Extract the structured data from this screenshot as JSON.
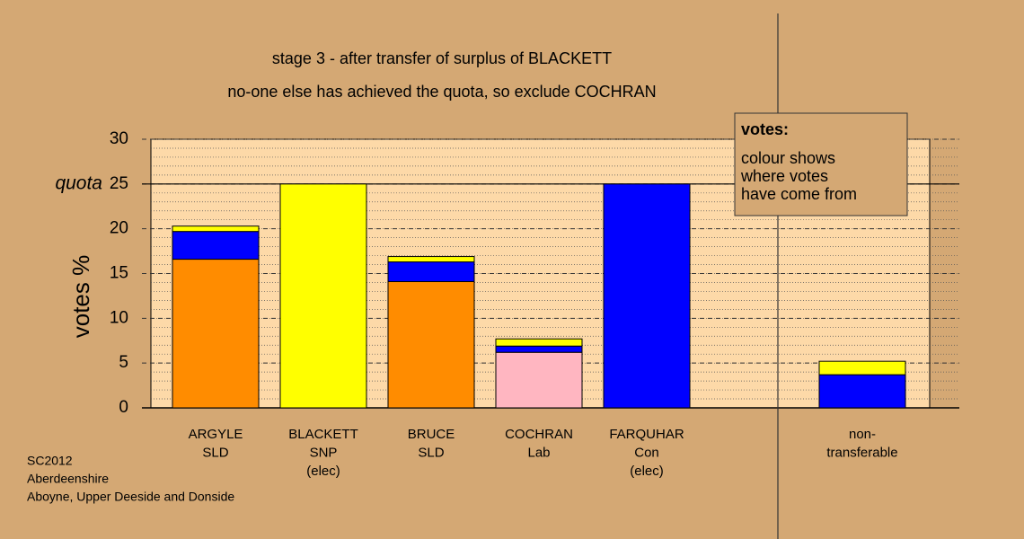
{
  "chart_data": {
    "type": "stacked_bar",
    "title": "stage 3 - after transfer of surplus of BLACKETT",
    "subtitle": "no-one else has achieved the quota, so exclude COCHRAN",
    "y_label": "votes %",
    "categories": [
      [
        "ARGYLE",
        "SLD"
      ],
      [
        "BLACKETT",
        "SNP",
        "(elec)"
      ],
      [
        "BRUCE",
        "SLD"
      ],
      [
        "COCHRAN",
        "Lab"
      ],
      [
        "FARQUHAR",
        "Con",
        "(elec)"
      ],
      null,
      [
        "non-",
        "transferable"
      ]
    ],
    "series": [
      {
        "color": "#ff8c00",
        "values": [
          16.6,
          null,
          14.1,
          null,
          null,
          null,
          null
        ]
      },
      {
        "color": "#ffb6c1",
        "values": [
          null,
          null,
          null,
          6.2,
          null,
          null,
          null
        ]
      },
      {
        "color": "#0000ff",
        "values": [
          3.1,
          null,
          2.2,
          0.7,
          25,
          null,
          3.7
        ]
      },
      {
        "color": "#ffff00",
        "values": [
          0.6,
          25,
          0.6,
          0.8,
          null,
          null,
          1.5
        ]
      }
    ],
    "ylim": [
      0,
      30
    ],
    "yticks": [
      0,
      5,
      10,
      15,
      20,
      25,
      30
    ],
    "minor_tick_step": 1,
    "reference_line": {
      "value": 25,
      "label": "quota"
    },
    "legend_note": {
      "title": "votes:",
      "lines": [
        "colour shows",
        "where votes",
        "have come from"
      ]
    },
    "source": [
      "SC2012",
      "Aberdeenshire",
      "Aboyne, Upper Deeside and Donside"
    ]
  }
}
